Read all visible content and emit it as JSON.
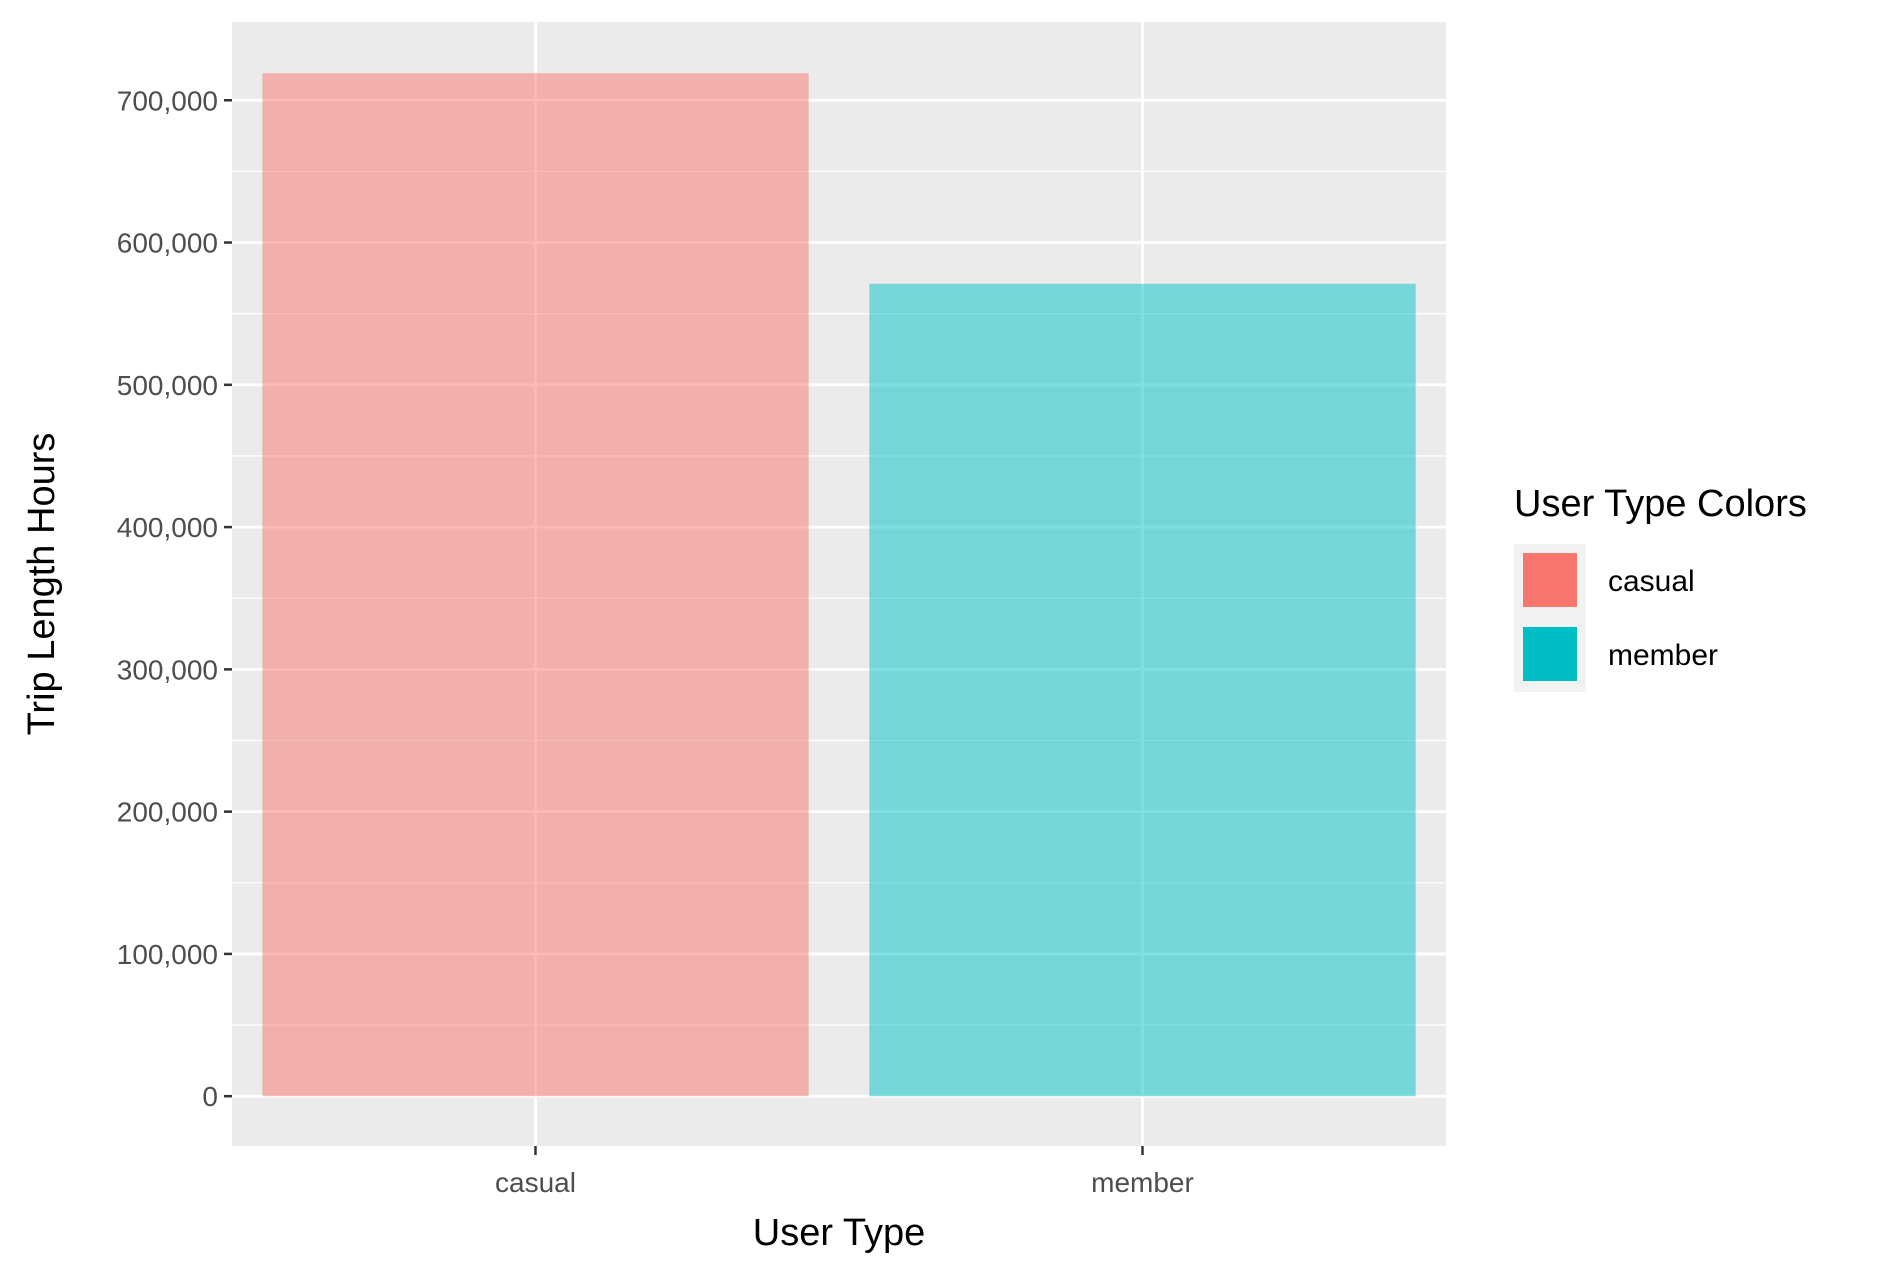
{
  "chart_data": {
    "type": "bar",
    "categories": [
      "casual",
      "member"
    ],
    "values": [
      719000,
      571000
    ],
    "colors": [
      "#F8766D",
      "#00BFC4"
    ],
    "fill_alpha": 0.5,
    "title": "",
    "xlabel": "User Type",
    "ylabel": "Trip Length Hours",
    "ylim": [
      -35000,
      755000
    ],
    "yticks": [
      0,
      100000,
      200000,
      300000,
      400000,
      500000,
      600000,
      700000
    ],
    "ytick_labels": [
      "0",
      "100,000",
      "200,000",
      "300,000",
      "400,000",
      "500,000",
      "600,000",
      "700,000"
    ],
    "grid": true,
    "panel_background": "#EBEBEB",
    "legend": {
      "title": "User Type Colors",
      "position": "right",
      "entries": [
        {
          "label": "casual",
          "color": "#F8766D"
        },
        {
          "label": "member",
          "color": "#00BFC4"
        }
      ]
    }
  }
}
